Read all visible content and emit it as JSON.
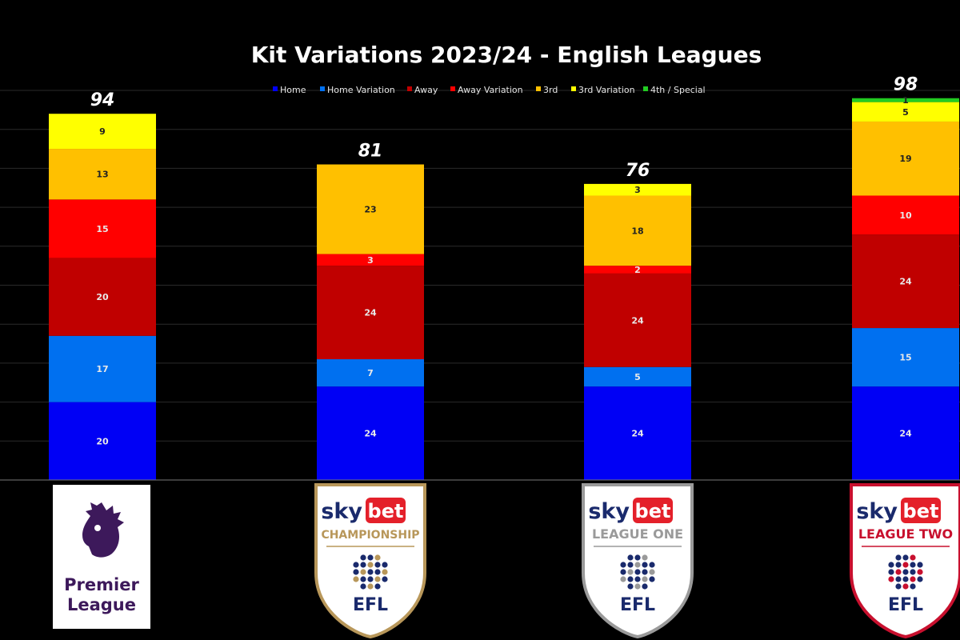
{
  "chart_data": {
    "type": "bar",
    "stacked": true,
    "title": "Kit Variations 2023/24 - English Leagues",
    "categories": [
      "Premier League",
      "Sky Bet Championship",
      "Sky Bet League One",
      "Sky Bet League Two"
    ],
    "series": [
      {
        "name": "Home",
        "color": "#0000f5",
        "values": [
          20,
          24,
          24,
          24
        ]
      },
      {
        "name": "Home Variation",
        "color": "#0070f0",
        "values": [
          17,
          7,
          5,
          15
        ]
      },
      {
        "name": "Away",
        "color": "#c00000",
        "values": [
          20,
          24,
          24,
          24
        ]
      },
      {
        "name": "Away Variation",
        "color": "#ff0000",
        "values": [
          15,
          3,
          2,
          10
        ]
      },
      {
        "name": "3rd",
        "color": "#ffc000",
        "values": [
          13,
          23,
          18,
          19
        ]
      },
      {
        "name": "3rd Variation",
        "color": "#ffff00",
        "values": [
          9,
          0,
          3,
          5
        ]
      },
      {
        "name": "4th / Special",
        "color": "#22cc22",
        "values": [
          0,
          0,
          0,
          1
        ]
      }
    ],
    "totals": [
      94,
      81,
      76,
      98
    ],
    "ylim": [
      0,
      100
    ],
    "grid": true,
    "legend": "top"
  },
  "logos": [
    {
      "name": "premier-league",
      "lines": [
        "Premier",
        "League"
      ],
      "icon": "lion-icon"
    },
    {
      "name": "championship",
      "sky": "sky",
      "bet": "bet",
      "league": "CHAMPIONSHIP",
      "efl": "EFL",
      "color": "#b8975a"
    },
    {
      "name": "league-one",
      "sky": "sky",
      "bet": "bet",
      "league": "LEAGUE ONE",
      "efl": "EFL",
      "color": "#9a9a9a"
    },
    {
      "name": "league-two",
      "sky": "sky",
      "bet": "bet",
      "league": "LEAGUE TWO",
      "efl": "EFL",
      "color": "#c8102e"
    }
  ]
}
